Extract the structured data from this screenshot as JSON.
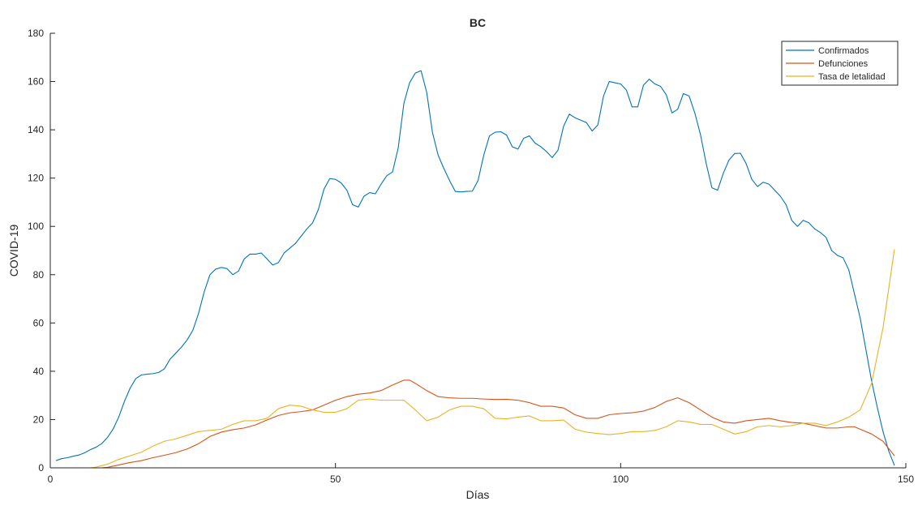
{
  "chart_data": {
    "type": "line",
    "title": "BC",
    "xlabel": "Días",
    "ylabel": "COVID-19",
    "xlim": [
      0,
      150
    ],
    "ylim": [
      0,
      180
    ],
    "xticks": [
      0,
      50,
      100,
      150
    ],
    "yticks": [
      0,
      20,
      40,
      60,
      80,
      100,
      120,
      140,
      160,
      180
    ],
    "grid": false,
    "legend_position": "top-right",
    "series": [
      {
        "name": "Confirmados",
        "color": "#0072BD",
        "x": [
          1,
          2,
          3,
          4,
          5,
          6,
          7,
          8,
          9,
          10,
          11,
          12,
          13,
          14,
          15,
          16,
          17,
          18,
          19,
          20,
          21,
          22,
          23,
          24,
          25,
          26,
          27,
          28,
          29,
          30,
          31,
          32,
          33,
          34,
          35,
          36,
          37,
          38,
          39,
          40,
          41,
          42,
          43,
          44,
          45,
          46,
          47,
          48,
          49,
          50,
          51,
          52,
          53,
          54,
          55,
          56,
          57,
          58,
          59,
          60,
          61,
          62,
          63,
          64,
          65,
          66,
          67,
          68,
          69,
          70,
          71,
          72,
          73,
          74,
          75,
          76,
          77,
          78,
          79,
          80,
          81,
          82,
          83,
          84,
          85,
          86,
          87,
          88,
          89,
          90,
          91,
          92,
          93,
          94,
          95,
          96,
          97,
          98,
          99,
          100,
          101,
          102,
          103,
          104,
          105,
          106,
          107,
          108,
          109,
          110,
          111,
          112,
          113,
          114,
          115,
          116,
          117,
          118,
          119,
          120,
          121,
          122,
          123,
          124,
          125,
          126,
          127,
          128,
          129,
          130,
          131,
          132,
          133,
          134,
          135,
          136,
          137,
          138,
          139,
          140,
          141,
          142,
          143,
          144,
          145,
          146,
          147,
          148
        ],
        "y": [
          3,
          3.8,
          4.2,
          4.8,
          5.3,
          6.2,
          7.5,
          8.5,
          10,
          12.5,
          16,
          21,
          27.5,
          33,
          37,
          38.5,
          38.8,
          39,
          39.5,
          41,
          45,
          47.5,
          50,
          53,
          57,
          64,
          73,
          80,
          82.3,
          83,
          82.5,
          80,
          81.5,
          86.5,
          88.5,
          88.5,
          89,
          86.5,
          84,
          85,
          89,
          91,
          93,
          96,
          99,
          101.5,
          107,
          115.5,
          119.8,
          119.5,
          118,
          115,
          109,
          108,
          112.5,
          114,
          113.5,
          117.5,
          121,
          122.5,
          132.5,
          151,
          159.5,
          163.5,
          164.5,
          155.5,
          139,
          129.5,
          124,
          119,
          114.5,
          114.3,
          114.5,
          114.6,
          119,
          129.5,
          137.5,
          139,
          139.2,
          137.8,
          133,
          132,
          136.5,
          137.5,
          134.5,
          133,
          131,
          128.5,
          131.5,
          141.5,
          146.5,
          145,
          144,
          143,
          139.5,
          142,
          154,
          160,
          159.5,
          159,
          156.5,
          149.5,
          149.5,
          158.5,
          161,
          159,
          158,
          154.5,
          147,
          148.5,
          155,
          154,
          147,
          138,
          126,
          116,
          115,
          122,
          127.5,
          130.2,
          130.3,
          126,
          119.5,
          116.5,
          118.3,
          117.5,
          115,
          112.5,
          109,
          102.5,
          100,
          102.5,
          101.5,
          99,
          97.5,
          95.5,
          90,
          88,
          87,
          82,
          72,
          62,
          49,
          36,
          25,
          15,
          7,
          1
        ]
      },
      {
        "name": "Defunciones",
        "color": "#D95319",
        "x": [
          1,
          9,
          10,
          12,
          14,
          16,
          18,
          20,
          22,
          24,
          26,
          28,
          30,
          32,
          34,
          36,
          38,
          40,
          42,
          44,
          46,
          48,
          50,
          52,
          54,
          56,
          58,
          60,
          62,
          63,
          64,
          66,
          68,
          70,
          72,
          74,
          76,
          78,
          80,
          82,
          84,
          86,
          88,
          90,
          92,
          94,
          96,
          98,
          100,
          102,
          104,
          106,
          108,
          110,
          112,
          114,
          116,
          118,
          120,
          122,
          124,
          126,
          128,
          130,
          132,
          134,
          136,
          138,
          140,
          141,
          142,
          144,
          146,
          148
        ],
        "y": [
          0,
          0,
          0.2,
          1.2,
          2.2,
          3,
          4.2,
          5.2,
          6.3,
          7.8,
          10,
          13,
          14.8,
          15.8,
          16.5,
          17.8,
          19.8,
          21.7,
          22.8,
          23.3,
          24,
          26,
          28,
          29.5,
          30.5,
          31,
          32,
          34.3,
          36.3,
          36.3,
          35,
          32,
          29.5,
          29,
          28.8,
          28.8,
          28.5,
          28.3,
          28.4,
          28,
          27,
          25.5,
          25.5,
          24.8,
          22,
          20.5,
          20.5,
          22,
          22.5,
          22.8,
          23.5,
          25,
          27.5,
          29,
          27,
          24,
          21,
          19,
          18.5,
          19.5,
          20,
          20.5,
          19.5,
          18.8,
          18.5,
          17.5,
          16.5,
          16.5,
          17,
          17,
          16,
          14,
          11,
          5
        ]
      },
      {
        "name": "Tasa de letalidad",
        "color": "#EDB120",
        "x": [
          1,
          7,
          8,
          10,
          12,
          14,
          16,
          18,
          20,
          22,
          24,
          26,
          28,
          30,
          32,
          34,
          36,
          38,
          40,
          42,
          44,
          46,
          48,
          50,
          52,
          54,
          56,
          58,
          60,
          62,
          64,
          66,
          68,
          70,
          72,
          74,
          76,
          78,
          80,
          82,
          84,
          86,
          88,
          90,
          92,
          94,
          96,
          98,
          100,
          102,
          104,
          106,
          108,
          110,
          112,
          114,
          116,
          118,
          120,
          122,
          124,
          126,
          128,
          130,
          132,
          134,
          136,
          138,
          140,
          142,
          144,
          146,
          148
        ],
        "y": [
          0,
          0,
          0.3,
          1.5,
          3.5,
          5,
          6.5,
          9,
          11,
          12,
          13.5,
          15,
          15.5,
          16,
          18,
          19.5,
          19.5,
          20.5,
          24.5,
          26,
          25.5,
          24,
          23,
          23,
          24.5,
          28,
          28.5,
          28,
          28,
          28,
          24,
          19.5,
          21,
          24,
          25.5,
          25.5,
          24.5,
          20.5,
          20.3,
          21,
          21.5,
          19.5,
          19.5,
          19.8,
          16,
          14.8,
          14.2,
          13.8,
          14.2,
          15,
          15,
          15.5,
          17,
          19.5,
          19,
          18,
          18,
          16,
          14,
          15,
          17,
          17.5,
          17,
          17.5,
          18.5,
          18.5,
          17.5,
          19,
          21,
          24,
          35,
          58,
          90.5
        ]
      }
    ]
  }
}
